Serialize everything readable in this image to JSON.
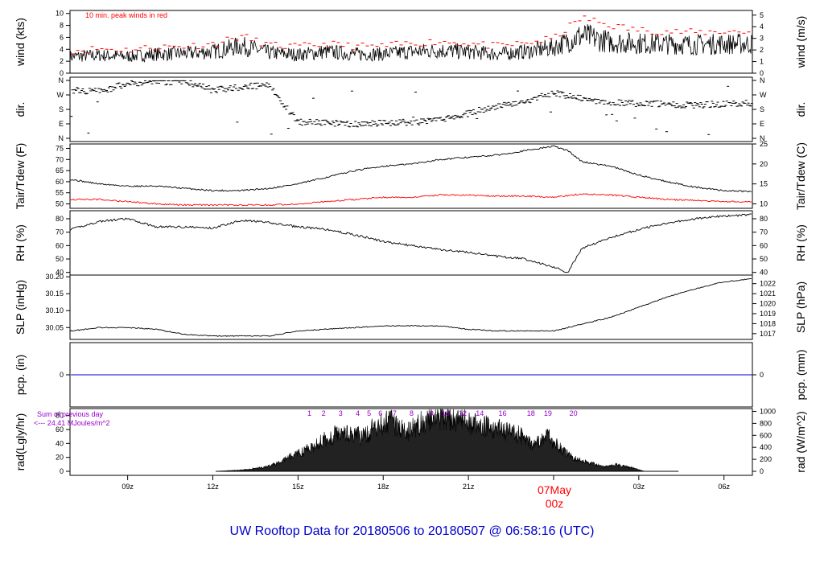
{
  "title": "UW Rooftop Data for 20180506  to  20180507 @ 06:58:16  (UTC)",
  "wind_note": "10 min. peak winds in red",
  "rad_note_1": "Sum of previous day",
  "rad_note_2": "<--- 24.41 MJoules/m^2",
  "date_label": "07May",
  "date_label_2": "00z",
  "colors": {
    "axis": "#000000",
    "red": "#ff0000",
    "blue": "#0000cc",
    "title": "#0000cc",
    "purple": "#9900cc",
    "trace": "#000000"
  },
  "x_axis": {
    "start_hour": 6.97,
    "end_hour": 31.0,
    "tick_hours": [
      9,
      12,
      15,
      18,
      21,
      27,
      30
    ],
    "tick_labels": [
      "09z",
      "12z",
      "15z",
      "18z",
      "21z",
      "03z",
      "06z"
    ]
  },
  "chart_data": [
    {
      "id": "wind",
      "type": "line",
      "ylabel_left": "wind (kts)",
      "ylabel_right": "wind (m/s)",
      "ylim": [
        0,
        10.5
      ],
      "left_ticks": [
        0,
        2,
        4,
        6,
        8,
        10
      ],
      "right_ticks_ms": [
        0,
        1,
        2,
        3,
        4,
        5
      ],
      "series": [
        {
          "name": "",
          "x": [
            7,
            8,
            9,
            10,
            11,
            12,
            13,
            14,
            15,
            16,
            17,
            18,
            19,
            20,
            21,
            22,
            23,
            24,
            25,
            26,
            27,
            28,
            29,
            30,
            31
          ],
          "values": [
            2.8,
            3.0,
            2.8,
            3.2,
            3.3,
            3.6,
            4.6,
            3.4,
            3.1,
            3.6,
            3.2,
            3.2,
            3.6,
            3.8,
            3.6,
            3.2,
            3.6,
            4.3,
            6.3,
            5.2,
            5.0,
            4.9,
            4.8,
            4.9,
            4.9
          ]
        },
        {
          "name": "10 min. peak winds in red",
          "x": [
            7,
            8,
            9,
            10,
            11,
            12,
            13,
            14,
            15,
            16,
            17,
            18,
            19,
            20,
            21,
            22,
            23,
            24,
            25,
            26,
            27,
            28,
            29,
            30,
            31
          ],
          "values": [
            3.8,
            4.1,
            3.9,
            4.4,
            4.5,
            4.9,
            6.2,
            4.7,
            4.4,
            4.9,
            4.5,
            4.5,
            5.0,
            5.3,
            5.0,
            4.5,
            5.0,
            5.8,
            9.3,
            8.0,
            7.2,
            7.0,
            6.8,
            7.0,
            6.9
          ]
        }
      ]
    },
    {
      "id": "dir",
      "type": "scatter",
      "ylabel_left": "dir.",
      "ylabel_right": "dir.",
      "tick_labels": [
        "N",
        "E",
        "S",
        "W",
        "N"
      ],
      "series": [
        {
          "name": "",
          "x": [
            7,
            8,
            9,
            10,
            11,
            12,
            13,
            14,
            15,
            16,
            17,
            18,
            19,
            20,
            21,
            22,
            23,
            24,
            25,
            26,
            27,
            28,
            29,
            30,
            31
          ],
          "values": [
            300,
            290,
            340,
            350,
            355,
            300,
            320,
            330,
            100,
            95,
            90,
            95,
            100,
            110,
            160,
            200,
            230,
            280,
            250,
            220,
            220,
            210,
            205,
            215,
            220
          ]
        }
      ]
    },
    {
      "id": "temp",
      "type": "line",
      "ylabel_left": "Tair/Tdew (F)",
      "ylabel_right": "Tair/Tdew (C)",
      "ylim": [
        48,
        77
      ],
      "left_ticks": [
        50,
        55,
        60,
        65,
        70,
        75
      ],
      "right_ticks_c": [
        10,
        15,
        20,
        25
      ],
      "series": [
        {
          "name": "",
          "color": "black",
          "x": [
            7,
            8,
            9,
            10,
            11,
            12,
            13,
            14,
            15,
            16,
            17,
            18,
            19,
            20,
            21,
            22,
            23,
            24,
            24.5,
            25,
            26,
            27,
            28,
            29,
            30,
            31
          ],
          "values": [
            61,
            59,
            58,
            58,
            57,
            56,
            56,
            57,
            59,
            62,
            65,
            67,
            68,
            70,
            71,
            72,
            74,
            76,
            74,
            69,
            67,
            63,
            60,
            57.5,
            56,
            55.5
          ]
        },
        {
          "name": "",
          "color": "red",
          "x": [
            7,
            8,
            9,
            10,
            11,
            12,
            13,
            14,
            15,
            16,
            17,
            18,
            19,
            20,
            21,
            22,
            23,
            24,
            25,
            26,
            27,
            28,
            29,
            30,
            31
          ],
          "values": [
            52,
            52,
            51,
            50,
            49.5,
            49.5,
            49.5,
            49.5,
            50,
            51,
            52,
            53,
            53,
            54,
            54,
            53.5,
            53.5,
            53,
            54.5,
            54,
            53,
            52,
            51.5,
            51,
            51
          ]
        }
      ]
    },
    {
      "id": "rh",
      "type": "line",
      "ylabel_left": "RH (%)",
      "ylabel_right": "RH (%)",
      "ylim": [
        38,
        86
      ],
      "ticks": [
        40,
        50,
        60,
        70,
        80
      ],
      "series": [
        {
          "name": "",
          "x": [
            7,
            8,
            9,
            10,
            11,
            12,
            13,
            14,
            15,
            16,
            17,
            18,
            19,
            20,
            21,
            22,
            23,
            24,
            24.5,
            25,
            26,
            27,
            28,
            29,
            30,
            31
          ],
          "values": [
            72,
            78,
            80,
            74,
            74,
            73,
            79,
            77,
            74,
            72,
            68,
            63,
            60,
            57,
            55,
            52,
            50,
            44,
            40,
            58,
            66,
            72,
            77,
            80,
            82,
            83
          ]
        }
      ]
    },
    {
      "id": "slp",
      "type": "line",
      "ylabel_left": "SLP (inHg)",
      "ylabel_right": "SLP (hPa)",
      "ylim": [
        30.015,
        30.205
      ],
      "left_ticks": [
        30.05,
        30.1,
        30.15,
        30.2
      ],
      "right_ticks_hpa": [
        1017,
        1018,
        1019,
        1020,
        1021,
        1022
      ],
      "series": [
        {
          "name": "",
          "x": [
            7,
            8,
            9,
            10,
            11,
            12,
            13,
            14,
            15,
            16,
            17,
            18,
            19,
            20,
            21,
            22,
            23,
            24,
            25,
            26,
            27,
            28,
            29,
            30,
            31
          ],
          "values": [
            30.04,
            30.05,
            30.05,
            30.045,
            30.03,
            30.025,
            30.025,
            30.025,
            30.04,
            30.045,
            30.05,
            30.055,
            30.055,
            30.055,
            30.045,
            30.04,
            30.04,
            30.04,
            30.06,
            30.08,
            30.11,
            30.14,
            30.165,
            30.185,
            30.195
          ]
        }
      ]
    },
    {
      "id": "pcp",
      "type": "line",
      "ylabel_left": "pcp. (in)",
      "ylabel_right": "pcp. (mm)",
      "left_ticks": [
        0
      ],
      "right_ticks": [
        0
      ],
      "series": [
        {
          "name": "",
          "x": [
            7,
            31
          ],
          "values": [
            0,
            0
          ]
        }
      ]
    },
    {
      "id": "rad",
      "type": "area",
      "ylabel_left": "rad(Lgly/hr)",
      "ylabel_right": "rad (W/m^2)",
      "ylim": [
        0,
        90
      ],
      "left_ticks": [
        0,
        20,
        40,
        60,
        80
      ],
      "right_ticks_wm2": [
        0,
        200,
        400,
        600,
        800,
        1000
      ],
      "hour_marks": [
        1,
        2,
        3,
        4,
        5,
        6,
        7,
        8,
        9,
        10,
        12,
        14,
        16,
        18,
        19,
        20
      ],
      "hour_marks_x": [
        15.4,
        15.9,
        16.5,
        17.1,
        17.5,
        17.9,
        18.4,
        19.0,
        19.7,
        20.2,
        20.8,
        21.4,
        22.2,
        23.2,
        23.8,
        24.7
      ],
      "series": [
        {
          "name": "",
          "x": [
            12.1,
            13,
            13.8,
            14.3,
            14.7,
            15.2,
            15.8,
            16.3,
            16.8,
            17.3,
            17.8,
            18.3,
            18.8,
            19.3,
            19.8,
            20.3,
            20.8,
            21.3,
            21.8,
            22.3,
            22.8,
            23.3,
            23.8,
            24.3,
            24.8,
            25.3,
            25.8,
            26.2,
            26.8,
            27.2
          ],
          "values": [
            0,
            2,
            6,
            12,
            22,
            30,
            45,
            55,
            58,
            52,
            70,
            74,
            58,
            72,
            82,
            80,
            76,
            70,
            66,
            62,
            55,
            40,
            52,
            32,
            18,
            12,
            7,
            10,
            5,
            0
          ]
        }
      ]
    }
  ]
}
